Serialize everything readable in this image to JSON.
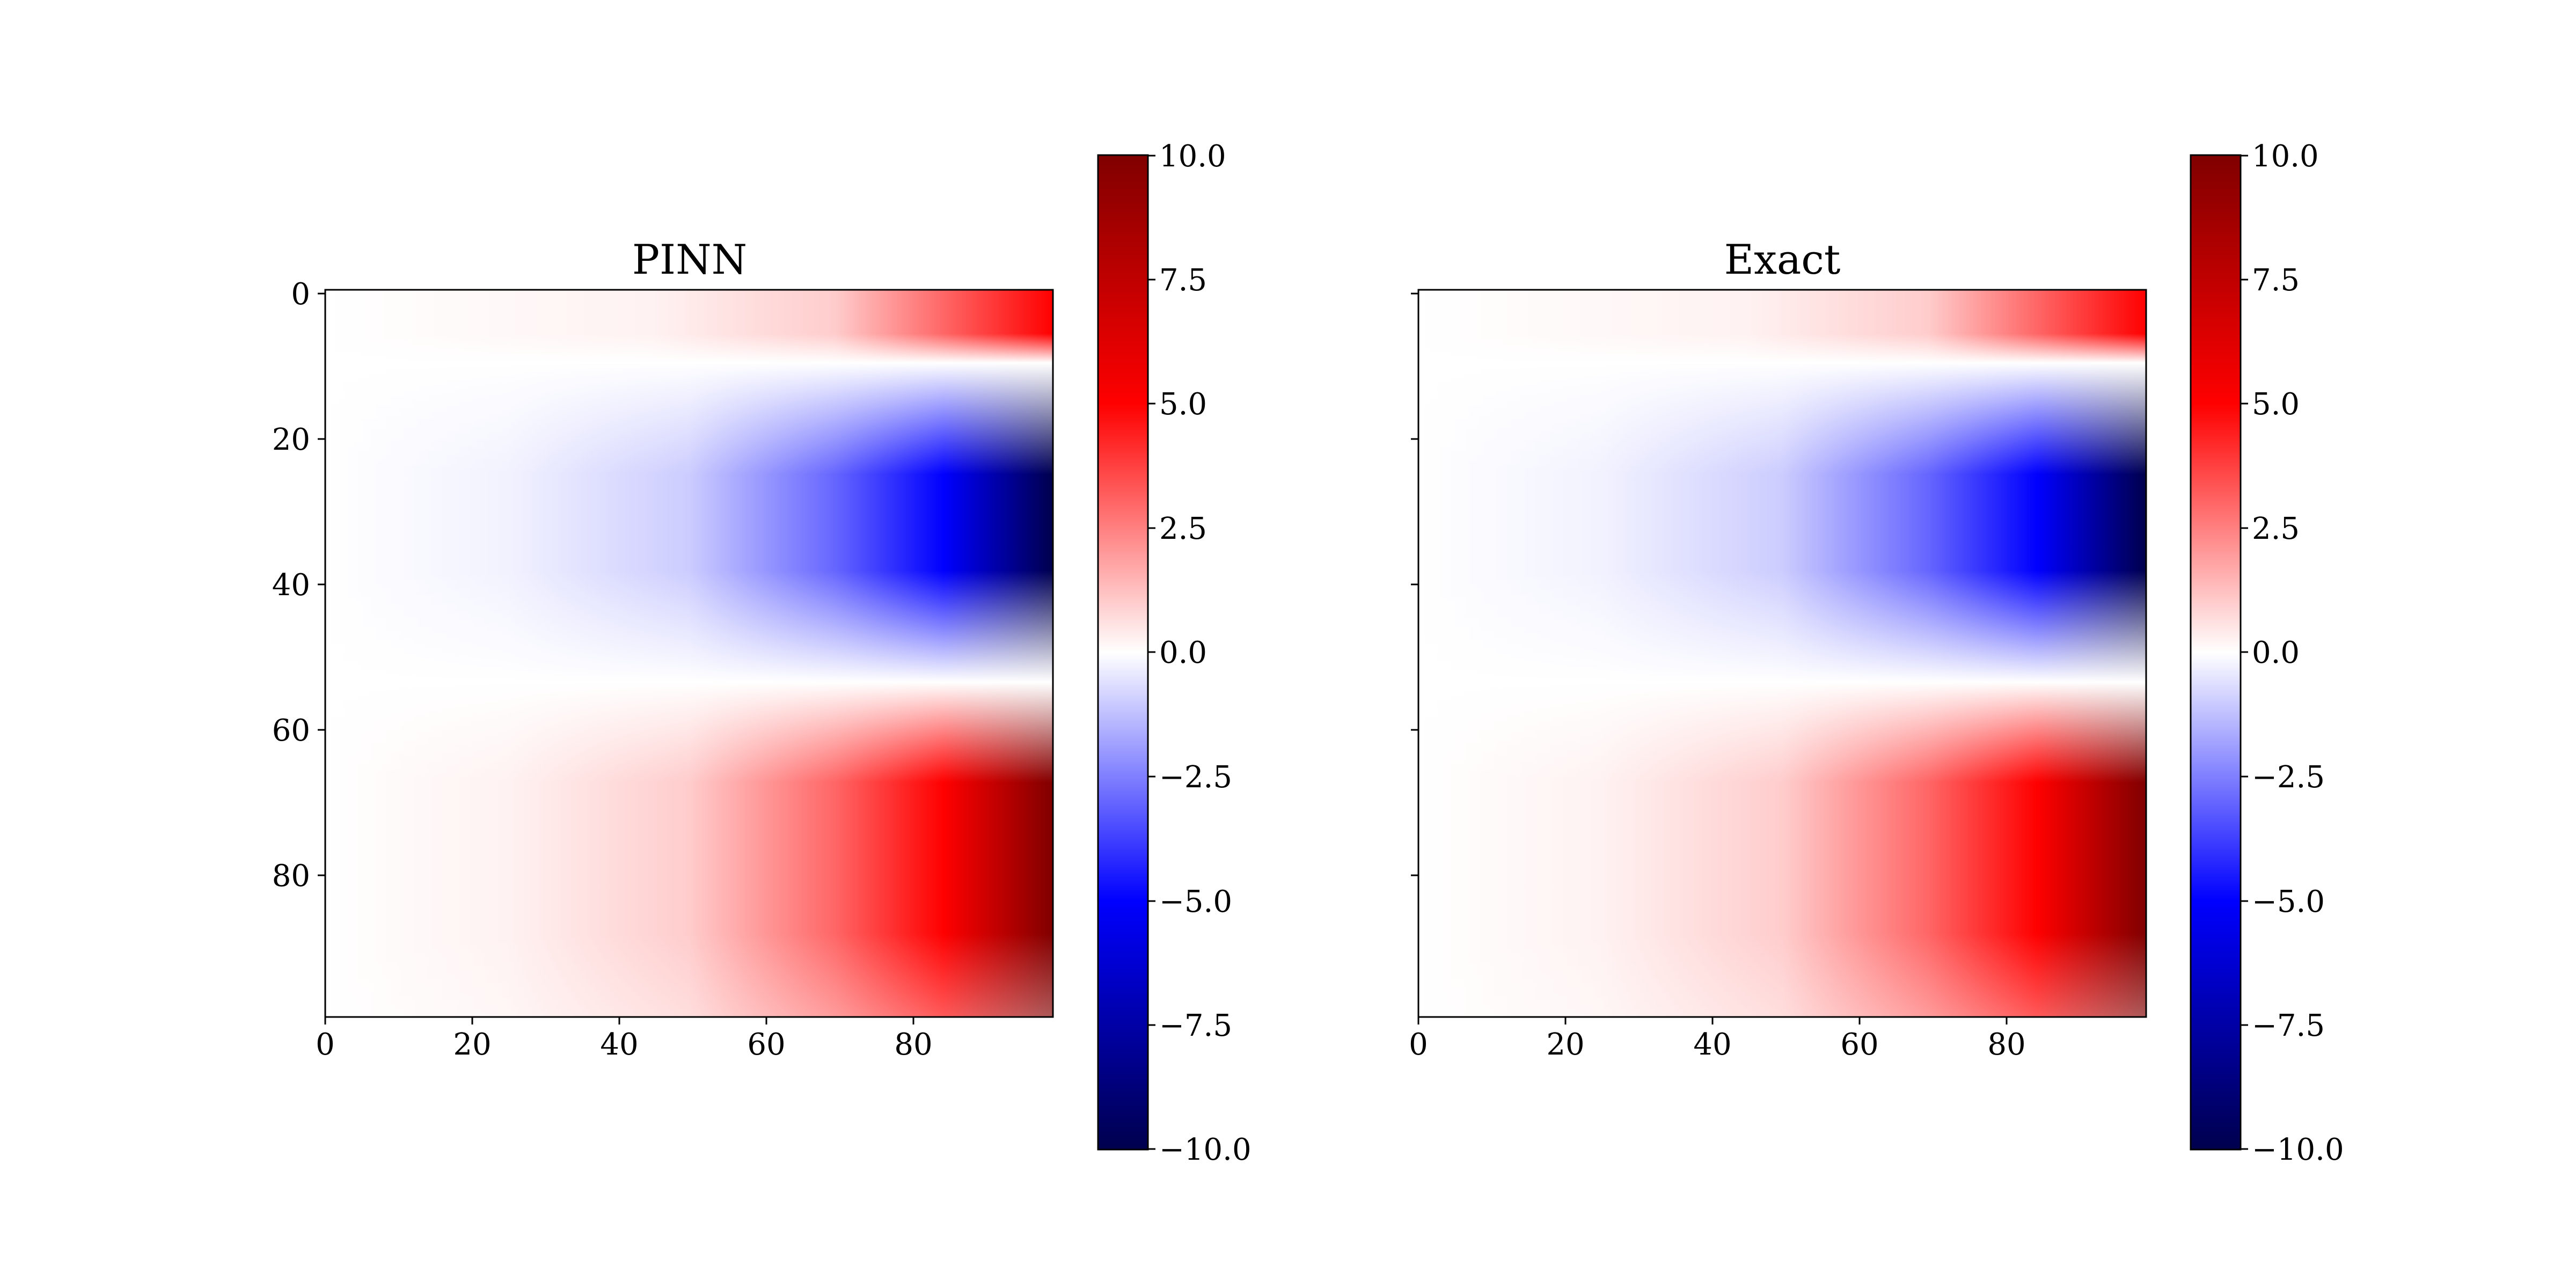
{
  "figure": {
    "colormap": "seismic",
    "colormap_stops": [
      "#00004d",
      "#0000ff",
      "#ffffff",
      "#ff0000",
      "#800000"
    ]
  },
  "chart_data": [
    {
      "type": "heatmap",
      "title": "PINN",
      "xlabel": "",
      "ylabel": "",
      "x_range": [
        0,
        99
      ],
      "y_range": [
        0,
        99
      ],
      "y_axis_inverted": true,
      "x_ticks": [
        "0",
        "20",
        "40",
        "60",
        "80"
      ],
      "y_ticks": [
        "0",
        "20",
        "40",
        "60",
        "80"
      ],
      "color_range": [
        -10,
        10
      ],
      "colorbar_ticks": [
        "10.0",
        "7.5",
        "5.0",
        "2.5",
        "0.0",
        "−2.5",
        "−5.0",
        "−7.5",
        "−10.0"
      ],
      "field": "value grows toward the right edge and alternates sign with row: positive near row 0, zero near rows 10 and 54, strongly negative near row 32 (about −10 at right edge), strongly positive near row 78 (about +10 at right edge)",
      "rows_sample": [
        0,
        10,
        20,
        32,
        44,
        54,
        66,
        78,
        90,
        99
      ],
      "values_at_right_edge": [
        8,
        0,
        -7,
        -10,
        -7,
        0,
        7,
        10,
        7,
        5
      ],
      "x_sample": [
        0,
        20,
        40,
        60,
        80,
        99
      ],
      "relative_magnitude_along_x": [
        0.02,
        0.05,
        0.15,
        0.35,
        0.7,
        1.0
      ]
    },
    {
      "type": "heatmap",
      "title": "Exact",
      "xlabel": "",
      "ylabel": "",
      "x_range": [
        0,
        99
      ],
      "y_range": [
        0,
        99
      ],
      "y_axis_inverted": true,
      "x_ticks": [
        "0",
        "20",
        "40",
        "60",
        "80"
      ],
      "y_ticks": [],
      "color_range": [
        -10,
        10
      ],
      "colorbar_ticks": [
        "10.0",
        "7.5",
        "5.0",
        "2.5",
        "0.0",
        "−2.5",
        "−5.0",
        "−7.5",
        "−10.0"
      ],
      "field": "same pattern as PINN panel",
      "rows_sample": [
        0,
        10,
        20,
        32,
        44,
        54,
        66,
        78,
        90,
        99
      ],
      "values_at_right_edge": [
        8,
        0,
        -7,
        -10,
        -7,
        0,
        7,
        10,
        7,
        5
      ],
      "x_sample": [
        0,
        20,
        40,
        60,
        80,
        99
      ],
      "relative_magnitude_along_x": [
        0.02,
        0.05,
        0.15,
        0.35,
        0.7,
        1.0
      ]
    }
  ]
}
